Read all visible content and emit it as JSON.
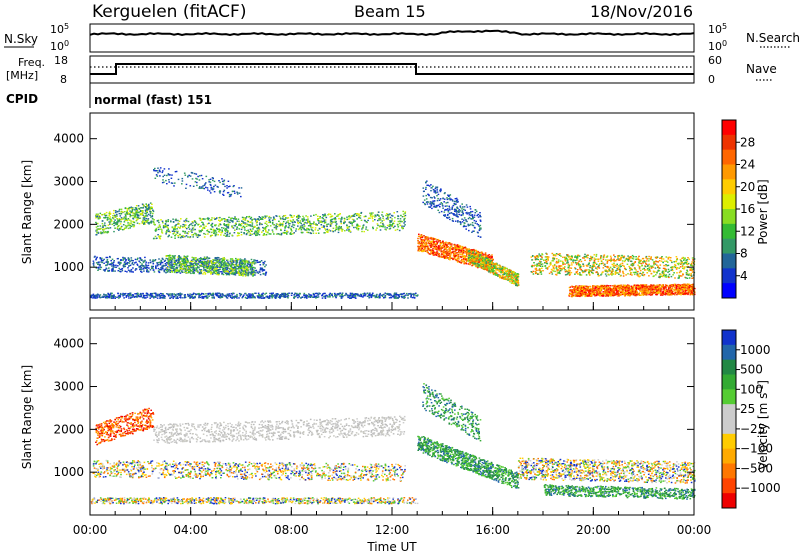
{
  "header": {
    "station": "Kerguelen (fitACF)",
    "beam": "Beam 15",
    "date": "18/Nov/2016"
  },
  "top_panel": {
    "nsky_label": "N.Sky",
    "nsky_top": "10^5",
    "nsky_bottom": "10^0",
    "nsearch_label": "N.Search",
    "nsearch_top": "10^5",
    "nsearch_bottom": "10^0",
    "freq_label_1": "Freq.",
    "freq_label_2": "[MHz]",
    "freq_top": "18",
    "freq_bottom": "8",
    "nave_label": "Nave",
    "nave_top": "60",
    "nave_bottom": "0",
    "cpid_label": "CPID",
    "cpid_value": "normal (fast) 151"
  },
  "chart_data": [
    {
      "type": "heatmap",
      "title": "",
      "ylabel": "Slant Range [km]",
      "xlabel": "",
      "ylim": [
        0,
        4600
      ],
      "yticks": [
        "1000",
        "2000",
        "3000",
        "4000"
      ],
      "colorbar": {
        "label": "Power [dB]",
        "ticks": [
          "28",
          "24",
          "20",
          "16",
          "12",
          "8",
          "4"
        ],
        "colors": [
          "#ff0000",
          "#ee3300",
          "#ff6600",
          "#ff9900",
          "#ffcc00",
          "#ddee00",
          "#88dd22",
          "#33bb33",
          "#339966",
          "#226699",
          "#1133cc",
          "#0000ff"
        ]
      }
    },
    {
      "type": "heatmap",
      "title": "",
      "ylabel": "Slant Range [km]",
      "xlabel": "Time UT",
      "ylim": [
        0,
        4600
      ],
      "yticks": [
        "1000",
        "2000",
        "3000",
        "4000"
      ],
      "xticks": [
        "00:00",
        "04:00",
        "08:00",
        "12:00",
        "16:00",
        "20:00",
        "00:00"
      ],
      "colorbar": {
        "label": "Velocity [m s^-1]",
        "ticks": [
          "1000",
          "500",
          "100",
          "25",
          "−25",
          "−100",
          "−500",
          "−1000"
        ],
        "colors": [
          "#1133cc",
          "#2266aa",
          "#228844",
          "#33aa33",
          "#55cc33",
          "#cccccc",
          "#cccccc",
          "#ffcc00",
          "#ffaa00",
          "#ff7700",
          "#ff4400",
          "#ee0000"
        ]
      }
    }
  ]
}
